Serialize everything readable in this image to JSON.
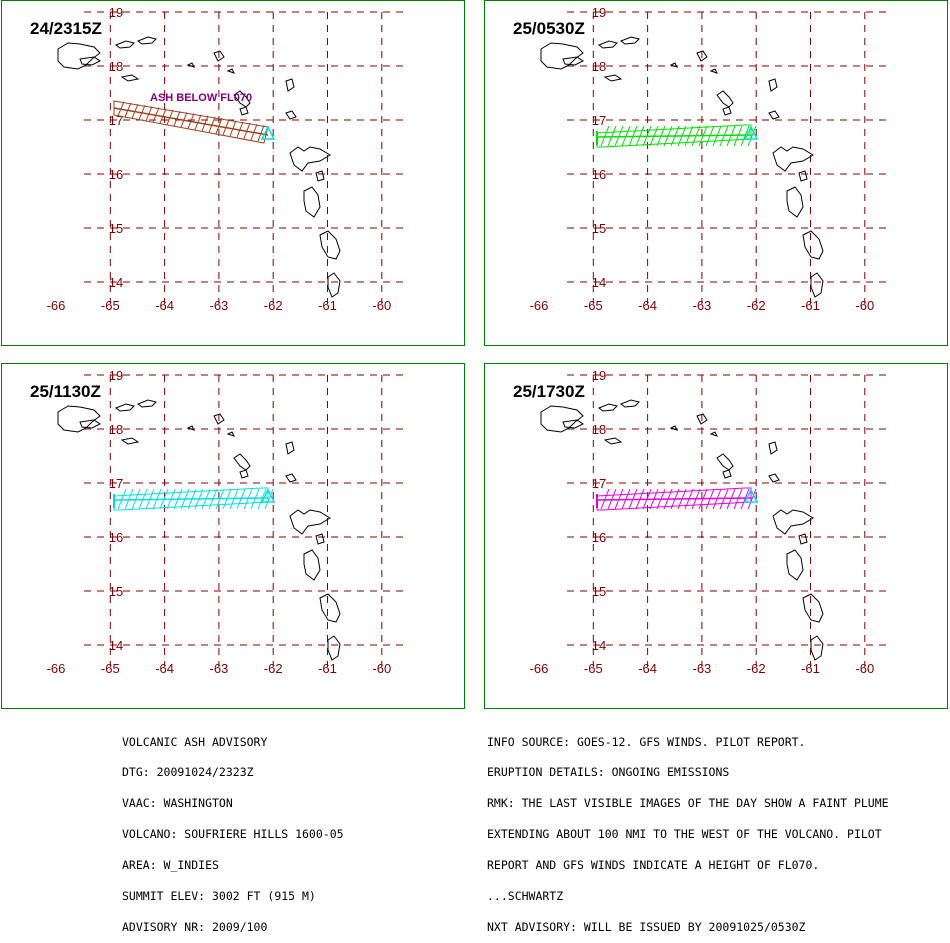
{
  "panels": [
    {
      "time": "24/2315Z",
      "color": "#a0401e",
      "shape": "diag",
      "label": "ASH BELOW FL070"
    },
    {
      "time": "25/0530Z",
      "color": "#00e000",
      "shape": "band",
      "label": ""
    },
    {
      "time": "25/1130Z",
      "color": "#00e0e0",
      "shape": "band",
      "label": ""
    },
    {
      "time": "25/1730Z",
      "color": "#e000e0",
      "shape": "band",
      "label": ""
    }
  ],
  "axes": {
    "lon_ticks": [
      "-66",
      "-65",
      "-64",
      "-63",
      "-62",
      "-61",
      "-60"
    ],
    "lat_ticks": [
      "19",
      "18",
      "17",
      "16",
      "15",
      "14"
    ]
  },
  "advisory_left": [
    "VOLCANIC ASH ADVISORY",
    "DTG: 20091024/2323Z",
    "VAAC: WASHINGTON",
    "VOLCANO: SOUFRIERE HILLS 1600-05",
    "AREA: W_INDIES",
    "SUMMIT ELEV: 3002 FT (915 M)",
    "ADVISORY NR: 2009/100"
  ],
  "advisory_right": [
    "INFO SOURCE: GOES-12. GFS WINDS. PILOT REPORT.",
    "ERUPTION DETAILS: ONGOING EMISSIONS",
    "RMK: THE LAST VISIBLE IMAGES OF THE DAY SHOW A FAINT PLUME",
    "EXTENDING ABOUT 100 NMI TO THE WEST OF THE VOLCANO. PILOT",
    "REPORT AND GFS WINDS INDICATE A HEIGHT OF FL070.",
    "...SCHWARTZ",
    "NXT ADVISORY: WILL BE ISSUED BY 20091025/0530Z"
  ]
}
